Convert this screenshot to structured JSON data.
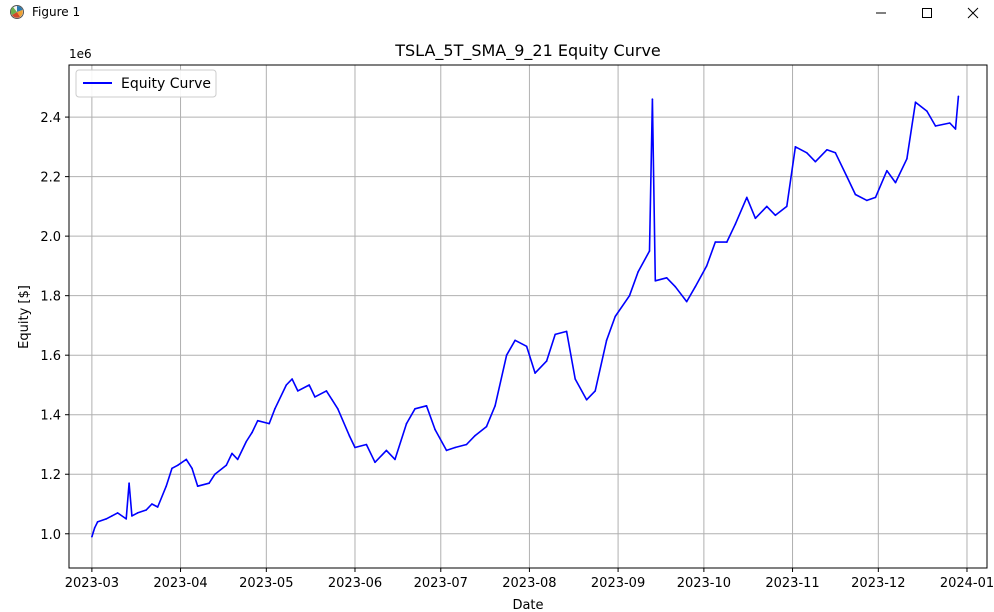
{
  "window": {
    "title": "Figure 1",
    "controls": [
      "minimize",
      "maximize",
      "close"
    ]
  },
  "chart_data": {
    "type": "line",
    "title": "TSLA_5T_SMA_9_21 Equity Curve",
    "xlabel": "Date",
    "ylabel": "Equity [$]",
    "y_offset_label": "1e6",
    "grid": true,
    "legend_position": "top-left",
    "y_ticks": [
      "1.0",
      "1.2",
      "1.4",
      "1.6",
      "1.8",
      "2.0",
      "2.2",
      "2.4"
    ],
    "x_ticks": [
      "2023-03",
      "2023-04",
      "2023-05",
      "2023-06",
      "2023-07",
      "2023-08",
      "2023-09",
      "2023-10",
      "2023-11",
      "2023-12",
      "2024-01"
    ],
    "xlim": [
      "2023-02-21",
      "2024-01-08"
    ],
    "ylim": [
      0.885,
      2.575
    ],
    "line_color": "#0000ff",
    "series": [
      {
        "name": "Equity Curve",
        "x": [
          "2023-03-01",
          "2023-03-02",
          "2023-03-03",
          "2023-03-06",
          "2023-03-08",
          "2023-03-10",
          "2023-03-13",
          "2023-03-14",
          "2023-03-15",
          "2023-03-17",
          "2023-03-20",
          "2023-03-22",
          "2023-03-24",
          "2023-03-27",
          "2023-03-29",
          "2023-03-31",
          "2023-04-03",
          "2023-04-05",
          "2023-04-07",
          "2023-04-11",
          "2023-04-13",
          "2023-04-17",
          "2023-04-19",
          "2023-04-21",
          "2023-04-24",
          "2023-04-26",
          "2023-04-28",
          "2023-05-02",
          "2023-05-04",
          "2023-05-08",
          "2023-05-10",
          "2023-05-12",
          "2023-05-16",
          "2023-05-18",
          "2023-05-22",
          "2023-05-24",
          "2023-05-26",
          "2023-05-30",
          "2023-06-01",
          "2023-06-05",
          "2023-06-08",
          "2023-06-12",
          "2023-06-15",
          "2023-06-19",
          "2023-06-22",
          "2023-06-26",
          "2023-06-29",
          "2023-07-03",
          "2023-07-06",
          "2023-07-10",
          "2023-07-13",
          "2023-07-17",
          "2023-07-20",
          "2023-07-24",
          "2023-07-27",
          "2023-07-31",
          "2023-08-03",
          "2023-08-07",
          "2023-08-10",
          "2023-08-14",
          "2023-08-17",
          "2023-08-21",
          "2023-08-24",
          "2023-08-28",
          "2023-08-31",
          "2023-09-05",
          "2023-09-08",
          "2023-09-12",
          "2023-09-13",
          "2023-09-14",
          "2023-09-18",
          "2023-09-21",
          "2023-09-25",
          "2023-09-28",
          "2023-10-02",
          "2023-10-05",
          "2023-10-09",
          "2023-10-12",
          "2023-10-16",
          "2023-10-19",
          "2023-10-23",
          "2023-10-26",
          "2023-10-30",
          "2023-11-02",
          "2023-11-06",
          "2023-11-09",
          "2023-11-13",
          "2023-11-16",
          "2023-11-20",
          "2023-11-23",
          "2023-11-27",
          "2023-11-30",
          "2023-12-04",
          "2023-12-07",
          "2023-12-11",
          "2023-12-14",
          "2023-12-18",
          "2023-12-21",
          "2023-12-26",
          "2023-12-28",
          "2023-12-29"
        ],
        "y": [
          0.99,
          1.02,
          1.04,
          1.05,
          1.06,
          1.07,
          1.05,
          1.17,
          1.06,
          1.07,
          1.08,
          1.1,
          1.09,
          1.16,
          1.22,
          1.23,
          1.25,
          1.22,
          1.16,
          1.17,
          1.2,
          1.23,
          1.27,
          1.25,
          1.31,
          1.34,
          1.38,
          1.37,
          1.42,
          1.5,
          1.52,
          1.48,
          1.5,
          1.46,
          1.48,
          1.45,
          1.42,
          1.33,
          1.29,
          1.3,
          1.24,
          1.28,
          1.25,
          1.37,
          1.42,
          1.43,
          1.35,
          1.28,
          1.29,
          1.3,
          1.33,
          1.36,
          1.43,
          1.6,
          1.65,
          1.63,
          1.54,
          1.58,
          1.67,
          1.68,
          1.52,
          1.45,
          1.48,
          1.65,
          1.73,
          1.8,
          1.88,
          1.95,
          2.46,
          1.85,
          1.86,
          1.83,
          1.78,
          1.83,
          1.9,
          1.98,
          1.98,
          2.04,
          2.13,
          2.06,
          2.1,
          2.07,
          2.1,
          2.3,
          2.28,
          2.25,
          2.29,
          2.28,
          2.2,
          2.14,
          2.12,
          2.13,
          2.22,
          2.18,
          2.26,
          2.45,
          2.42,
          2.37,
          2.38,
          2.36,
          2.47
        ]
      }
    ]
  }
}
